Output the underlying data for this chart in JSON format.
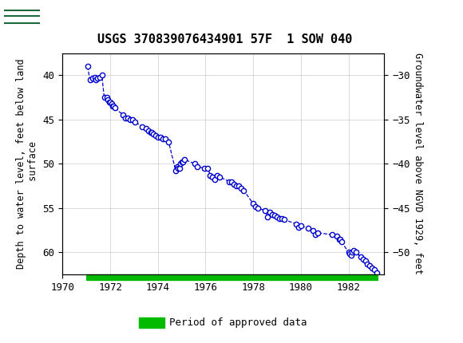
{
  "title": "USGS 370839076434901 57F  1 SOW 040",
  "ylabel_left": "Depth to water level, feet below land\n surface",
  "ylabel_right": "Groundwater level above NGVD 1929, feet",
  "ylim_left": [
    62.5,
    37.5
  ],
  "ylim_right": [
    -52.5,
    -27.5
  ],
  "xlim": [
    1970.0,
    1983.5
  ],
  "xticks": [
    1970,
    1972,
    1974,
    1976,
    1978,
    1980,
    1982
  ],
  "yticks_left": [
    40,
    45,
    50,
    55,
    60
  ],
  "yticks_right": [
    -30,
    -35,
    -40,
    -45,
    -50
  ],
  "header_color": "#1a6b3c",
  "line_color": "#0000cc",
  "marker_face": "#ffffff",
  "marker_edge": "#0000cc",
  "grid_color": "#cccccc",
  "background_color": "#ffffff",
  "legend_bar_color": "#00bb00",
  "legend_label": "Period of approved data",
  "data_x": [
    1971.05,
    1971.15,
    1971.25,
    1971.35,
    1971.4,
    1971.45,
    1971.55,
    1971.65,
    1971.75,
    1971.85,
    1971.9,
    1971.95,
    1972.0,
    1972.05,
    1972.1,
    1972.15,
    1972.2,
    1972.55,
    1972.65,
    1972.75,
    1972.85,
    1972.95,
    1973.05,
    1973.35,
    1973.5,
    1973.6,
    1973.7,
    1973.75,
    1973.8,
    1973.9,
    1974.0,
    1974.1,
    1974.2,
    1974.3,
    1974.45,
    1974.75,
    1974.8,
    1974.85,
    1974.9,
    1974.95,
    1975.0,
    1975.05,
    1975.1,
    1975.55,
    1975.65,
    1975.95,
    1976.1,
    1976.2,
    1976.3,
    1976.4,
    1976.5,
    1976.6,
    1977.0,
    1977.1,
    1977.2,
    1977.3,
    1977.4,
    1977.5,
    1977.6,
    1978.0,
    1978.1,
    1978.2,
    1978.5,
    1978.6,
    1978.7,
    1978.8,
    1978.9,
    1979.0,
    1979.1,
    1979.2,
    1979.3,
    1979.8,
    1979.9,
    1980.0,
    1980.3,
    1980.5,
    1980.6,
    1980.7,
    1981.3,
    1981.5,
    1981.6,
    1981.65,
    1981.7,
    1982.0,
    1982.05,
    1982.1,
    1982.15,
    1982.2,
    1982.3,
    1982.5,
    1982.6,
    1982.7,
    1982.8,
    1982.9,
    1983.0,
    1983.1,
    1983.2
  ],
  "data_y": [
    39.0,
    40.5,
    40.3,
    40.2,
    40.5,
    40.3,
    40.2,
    40.0,
    42.5,
    42.5,
    42.8,
    43.0,
    43.0,
    43.2,
    43.5,
    43.5,
    43.7,
    44.5,
    44.8,
    44.8,
    45.0,
    45.0,
    45.3,
    45.8,
    46.0,
    46.3,
    46.5,
    46.5,
    46.6,
    46.8,
    47.0,
    47.0,
    47.2,
    47.2,
    47.5,
    50.8,
    50.3,
    50.5,
    50.5,
    50.0,
    49.8,
    49.8,
    49.5,
    50.0,
    50.3,
    50.5,
    50.5,
    51.3,
    51.5,
    51.8,
    51.3,
    51.5,
    52.0,
    52.0,
    52.3,
    52.5,
    52.5,
    52.8,
    53.0,
    54.5,
    54.8,
    55.0,
    55.3,
    56.0,
    55.5,
    55.7,
    55.8,
    56.0,
    56.2,
    56.2,
    56.3,
    56.8,
    57.2,
    57.0,
    57.3,
    57.5,
    58.0,
    57.8,
    58.0,
    58.2,
    58.5,
    58.5,
    58.8,
    60.0,
    60.2,
    60.3,
    60.0,
    59.8,
    60.0,
    60.5,
    60.8,
    61.0,
    61.3,
    61.5,
    61.8,
    62.0,
    62.3
  ],
  "green_bar_x_start": 1971.0,
  "green_bar_x_end": 1983.25,
  "fig_width": 5.8,
  "fig_height": 4.3,
  "dpi": 100
}
